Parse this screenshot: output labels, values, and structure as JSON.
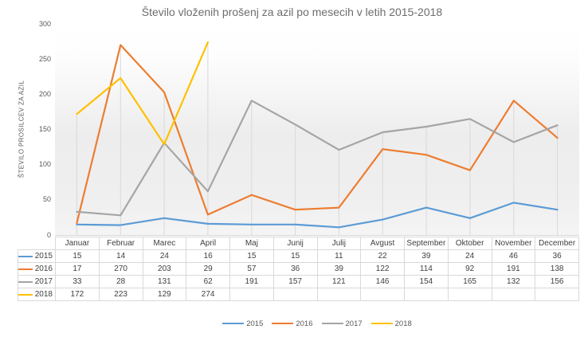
{
  "title": "Število vloženih prošenj za azil po mesecih v letih 2015-2018",
  "y_axis": {
    "title": "ŠTEVILO PROSILCEV ZA AZIL",
    "ticks": [
      0,
      50,
      100,
      150,
      200,
      250,
      300
    ]
  },
  "colors": {
    "grid": "#d9d9d9",
    "axis_line": "#d9d9d9",
    "table_border": "#d9d9d9",
    "title_text": "#6d6d6d",
    "axis_text": "#595959",
    "table_text": "#404040"
  },
  "chart_data": {
    "type": "line",
    "title": "Število vloženih prošenj za azil po mesecih v letih 2015-2018",
    "xlabel": "",
    "ylabel": "ŠTEVILO PROSILCEV ZA AZIL",
    "ylim": [
      0,
      300
    ],
    "grid": "vertical-drop-lines",
    "legend_position": "bottom",
    "categories": [
      "Januar",
      "Februar",
      "Marec",
      "April",
      "Maj",
      "Junij",
      "Julij",
      "Avgust",
      "September",
      "Oktober",
      "November",
      "December"
    ],
    "series": [
      {
        "name": "2015",
        "color": "#5B9BD5",
        "values": [
          15,
          14,
          24,
          16,
          15,
          15,
          11,
          22,
          39,
          24,
          46,
          36
        ]
      },
      {
        "name": "2016",
        "color": "#ED7D31",
        "values": [
          17,
          270,
          203,
          29,
          57,
          36,
          39,
          122,
          114,
          92,
          191,
          138
        ]
      },
      {
        "name": "2017",
        "color": "#A5A5A5",
        "values": [
          33,
          28,
          131,
          62,
          191,
          157,
          121,
          146,
          154,
          165,
          132,
          156
        ]
      },
      {
        "name": "2018",
        "color": "#FFC000",
        "values": [
          172,
          223,
          129,
          274,
          null,
          null,
          null,
          null,
          null,
          null,
          null,
          null
        ]
      }
    ]
  }
}
